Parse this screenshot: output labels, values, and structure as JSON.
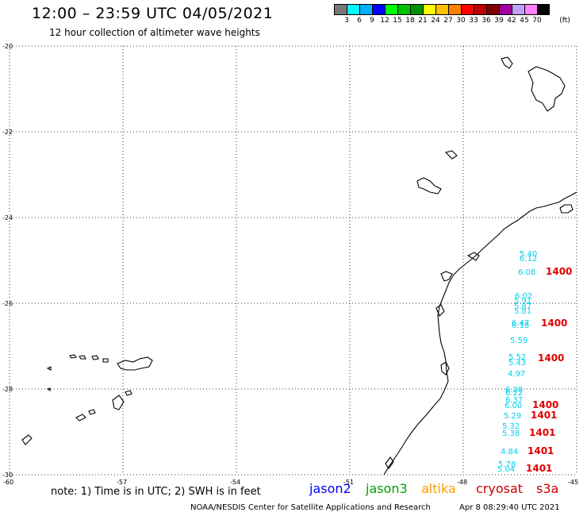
{
  "header": {
    "title": "12:00 – 23:59 UTC 04/05/2021",
    "subtitle": "12 hour collection of altimeter wave heights"
  },
  "legend": {
    "colors": [
      "#777777",
      "#00ffff",
      "#00b0ff",
      "#0000ff",
      "#00ff00",
      "#00c000",
      "#009000",
      "#ffff00",
      "#ffc000",
      "#ff8000",
      "#ff0000",
      "#c00000",
      "#800000",
      "#a000a0",
      "#c0a0ff",
      "#ff80ff",
      "#000000"
    ],
    "labels": [
      "3",
      "6",
      "9",
      "12",
      "15",
      "18",
      "21",
      "24",
      "27",
      "30",
      "33",
      "36",
      "39",
      "42",
      "45",
      "70"
    ],
    "unit": "(ft)"
  },
  "axes": {
    "lat_labels": [
      "-20",
      "-22",
      "-24",
      "-26",
      "-28",
      "-30"
    ],
    "lon_labels": [
      "-60",
      "-57",
      "-54",
      "-51",
      "-48",
      "-45"
    ]
  },
  "observations": {
    "wave_heights": [
      "5.40",
      "6.12",
      "6.08",
      "6.02",
      "5.91",
      "5.87",
      "5.81",
      "6.47",
      "6.18",
      "5.59",
      "5.52",
      "5.43",
      "4.97",
      "6.28",
      "6.22",
      "6.37",
      "6.00",
      "5.29",
      "5.32",
      "5.38",
      "4.84",
      "5.78",
      "5.04"
    ],
    "time_labels": [
      "1400",
      "1400",
      "1400",
      "1400",
      "1401",
      "1401",
      "1401",
      "1401"
    ]
  },
  "footer": {
    "note": "note: 1) Time is in UTC; 2) SWH is in feet",
    "satellites": [
      {
        "name": "jason2",
        "color": "#0000ff"
      },
      {
        "name": "jason3",
        "color": "#00a000"
      },
      {
        "name": "altika",
        "color": "#ff9900"
      },
      {
        "name": "cryosat",
        "color": "#cc0000"
      },
      {
        "name": "s3a",
        "color": "#cc0000"
      }
    ],
    "credit": "NOAA/NESDIS Center for Satellite Applications and Research",
    "date": "Apr  8 08:29:40 UTC 2021"
  }
}
